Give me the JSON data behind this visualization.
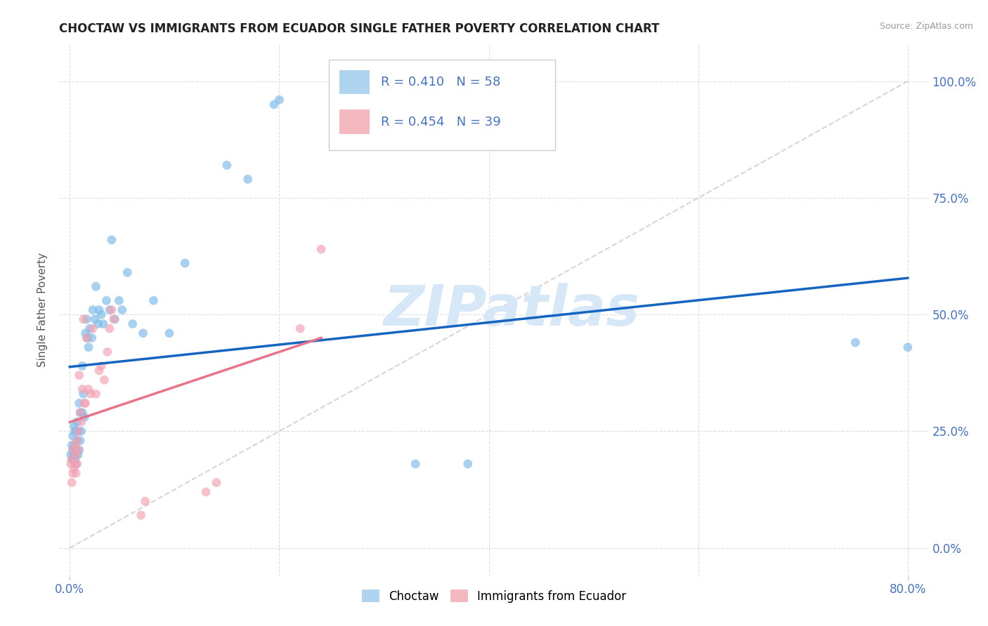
{
  "title": "CHOCTAW VS IMMIGRANTS FROM ECUADOR SINGLE FATHER POVERTY CORRELATION CHART",
  "source": "Source: ZipAtlas.com",
  "ylabel": "Single Father Poverty",
  "xlim": [
    -0.01,
    0.82
  ],
  "ylim": [
    -0.06,
    1.08
  ],
  "blue_color": "#7ab8e8",
  "pink_color": "#f4a0b0",
  "line_blue": "#1565c0",
  "line_pink": "#e8738a",
  "diag_color": "#cccccc",
  "grid_color": "#dddddd",
  "tick_color": "#4472c4",
  "watermark": "ZIPatlas",
  "watermark_color": "#d6e8f7",
  "legend_r1_text": "R = 0.410   N = 58",
  "legend_r2_text": "R = 0.454   N = 39",
  "legend_label1": "Choctaw",
  "legend_label2": "Immigrants from Ecuador",
  "choctaw_x": [
    0.001,
    0.002,
    0.002,
    0.003,
    0.003,
    0.004,
    0.004,
    0.005,
    0.005,
    0.005,
    0.006,
    0.006,
    0.007,
    0.007,
    0.008,
    0.008,
    0.009,
    0.009,
    0.01,
    0.01,
    0.011,
    0.012,
    0.012,
    0.013,
    0.014,
    0.015,
    0.016,
    0.017,
    0.018,
    0.019,
    0.021,
    0.022,
    0.024,
    0.025,
    0.027,
    0.028,
    0.03,
    0.032,
    0.035,
    0.038,
    0.04,
    0.043,
    0.047,
    0.05,
    0.055,
    0.06,
    0.07,
    0.08,
    0.095,
    0.11,
    0.15,
    0.17,
    0.195,
    0.2,
    0.33,
    0.38,
    0.75,
    0.8
  ],
  "choctaw_y": [
    0.2,
    0.22,
    0.19,
    0.21,
    0.24,
    0.2,
    0.26,
    0.19,
    0.22,
    0.25,
    0.18,
    0.21,
    0.23,
    0.27,
    0.2,
    0.25,
    0.21,
    0.31,
    0.23,
    0.29,
    0.25,
    0.29,
    0.39,
    0.33,
    0.28,
    0.46,
    0.49,
    0.45,
    0.43,
    0.47,
    0.45,
    0.51,
    0.49,
    0.56,
    0.48,
    0.51,
    0.5,
    0.48,
    0.53,
    0.51,
    0.66,
    0.49,
    0.53,
    0.51,
    0.59,
    0.48,
    0.46,
    0.53,
    0.46,
    0.61,
    0.82,
    0.79,
    0.95,
    0.96,
    0.18,
    0.18,
    0.44,
    0.43
  ],
  "ecuador_x": [
    0.001,
    0.002,
    0.002,
    0.003,
    0.003,
    0.004,
    0.005,
    0.005,
    0.006,
    0.006,
    0.007,
    0.007,
    0.008,
    0.008,
    0.009,
    0.01,
    0.011,
    0.012,
    0.013,
    0.014,
    0.015,
    0.016,
    0.018,
    0.02,
    0.022,
    0.025,
    0.028,
    0.03,
    0.033,
    0.036,
    0.038,
    0.04,
    0.042,
    0.068,
    0.072,
    0.13,
    0.14,
    0.22,
    0.24
  ],
  "ecuador_y": [
    0.18,
    0.14,
    0.19,
    0.16,
    0.21,
    0.17,
    0.18,
    0.22,
    0.16,
    0.2,
    0.23,
    0.18,
    0.21,
    0.25,
    0.37,
    0.29,
    0.27,
    0.34,
    0.49,
    0.31,
    0.31,
    0.45,
    0.34,
    0.33,
    0.47,
    0.33,
    0.38,
    0.39,
    0.36,
    0.42,
    0.47,
    0.51,
    0.49,
    0.07,
    0.1,
    0.12,
    0.14,
    0.47,
    0.64
  ],
  "x_ticks": [
    0.0,
    0.8
  ],
  "x_tick_labels": [
    "0.0%",
    "80.0%"
  ],
  "y_ticks": [
    0.0,
    0.25,
    0.5,
    0.75,
    1.0
  ],
  "y_tick_labels": [
    "0.0%",
    "25.0%",
    "50.0%",
    "75.0%",
    "100.0%"
  ]
}
